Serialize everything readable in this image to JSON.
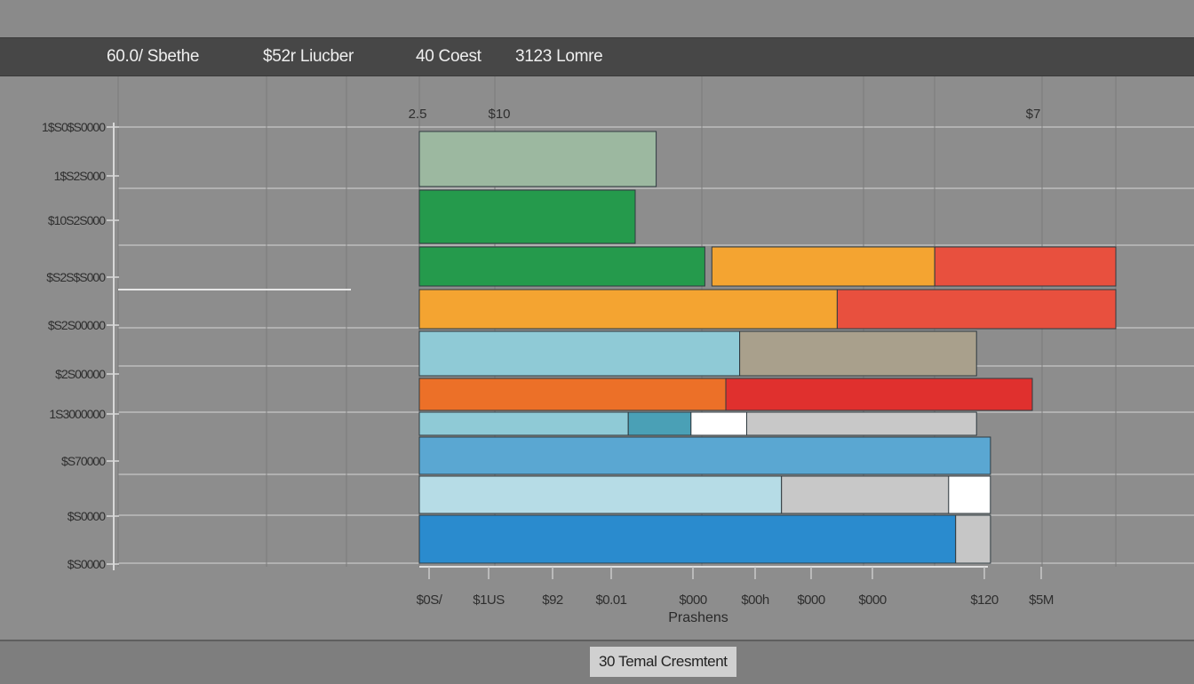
{
  "header": {
    "items": [
      {
        "value": "60.0/",
        "label": "Sbethe"
      },
      {
        "value": "$52r",
        "label": "Liucber"
      },
      {
        "value": "40",
        "label": "Coest"
      },
      {
        "value": "3123",
        "label": "Lomre"
      }
    ]
  },
  "footer": {
    "label": "30 Temal Cresmtent"
  },
  "colors": {
    "background": "#8d8d8d",
    "header_bar": "#474747",
    "grid": "#bdbdbd",
    "sage": "#9cb8a0",
    "green": "#259a4c",
    "orange": "#f4a431",
    "red": "#e8503e",
    "light_blue": "#8fcad6",
    "blue": "#5aa7d2",
    "deep_blue": "#2a8bce"
  },
  "chart_data": {
    "type": "bar",
    "orientation": "horizontal",
    "title": "",
    "xlabel": "Prashens",
    "ylabel": "",
    "y_tick_labels": [
      "1$S0$S0000",
      "1$S2S000",
      "$10S2S000",
      "$S2S$S000",
      "$S2S00000",
      "$2S00000",
      "1S3000000",
      "$S70000",
      "$S0000",
      "$S0000"
    ],
    "x_tick_labels": [
      "$0S/",
      "$1US",
      "$92",
      "$0.01",
      "$000",
      "$00h",
      "$000",
      "$000",
      "$120",
      "$5M"
    ],
    "top_labels": [
      "2.5",
      "$10",
      "$7"
    ],
    "xlim": [
      0,
      100
    ],
    "grid": true,
    "legend": "none",
    "rows": [
      {
        "segments": [
          {
            "start": 0,
            "end": 34,
            "color": "#9cb8a0"
          }
        ]
      },
      {
        "segments": [
          {
            "start": 0,
            "end": 31,
            "color": "#259a4c"
          }
        ]
      },
      {
        "segments": [
          {
            "start": 0,
            "end": 41,
            "color": "#259a4c"
          },
          {
            "start": 42,
            "end": 74,
            "color": "#f4a431"
          },
          {
            "start": 74,
            "end": 100,
            "color": "#e8503e"
          }
        ]
      },
      {
        "segments": [
          {
            "start": 0,
            "end": 60,
            "color": "#f4a431"
          },
          {
            "start": 60,
            "end": 100,
            "color": "#e8503e"
          }
        ]
      },
      {
        "segments": [
          {
            "start": 0,
            "end": 46,
            "color": "#8fcad6"
          },
          {
            "start": 46,
            "end": 80,
            "color": "#a9a08c"
          }
        ]
      },
      {
        "segments": [
          {
            "start": 0,
            "end": 44,
            "color": "#ec7028"
          },
          {
            "start": 44,
            "end": 88,
            "color": "#e0302e"
          }
        ]
      },
      {
        "segments": [
          {
            "start": 0,
            "end": 30,
            "color": "#8fcad6"
          },
          {
            "start": 30,
            "end": 39,
            "color": "#4aa0b6"
          },
          {
            "start": 39,
            "end": 47,
            "color": "#ffffff"
          },
          {
            "start": 47,
            "end": 80,
            "color": "#c8c8c8"
          }
        ]
      },
      {
        "segments": [
          {
            "start": 0,
            "end": 82,
            "color": "#5aa7d2"
          }
        ]
      },
      {
        "segments": [
          {
            "start": 0,
            "end": 52,
            "color": "#b6dce6"
          },
          {
            "start": 52,
            "end": 76,
            "color": "#c8c8c8"
          },
          {
            "start": 76,
            "end": 82,
            "color": "#ffffff"
          }
        ]
      },
      {
        "segments": [
          {
            "start": 0,
            "end": 77,
            "color": "#2a8bce"
          },
          {
            "start": 77,
            "end": 82,
            "color": "#c6c6c6"
          }
        ]
      }
    ]
  }
}
